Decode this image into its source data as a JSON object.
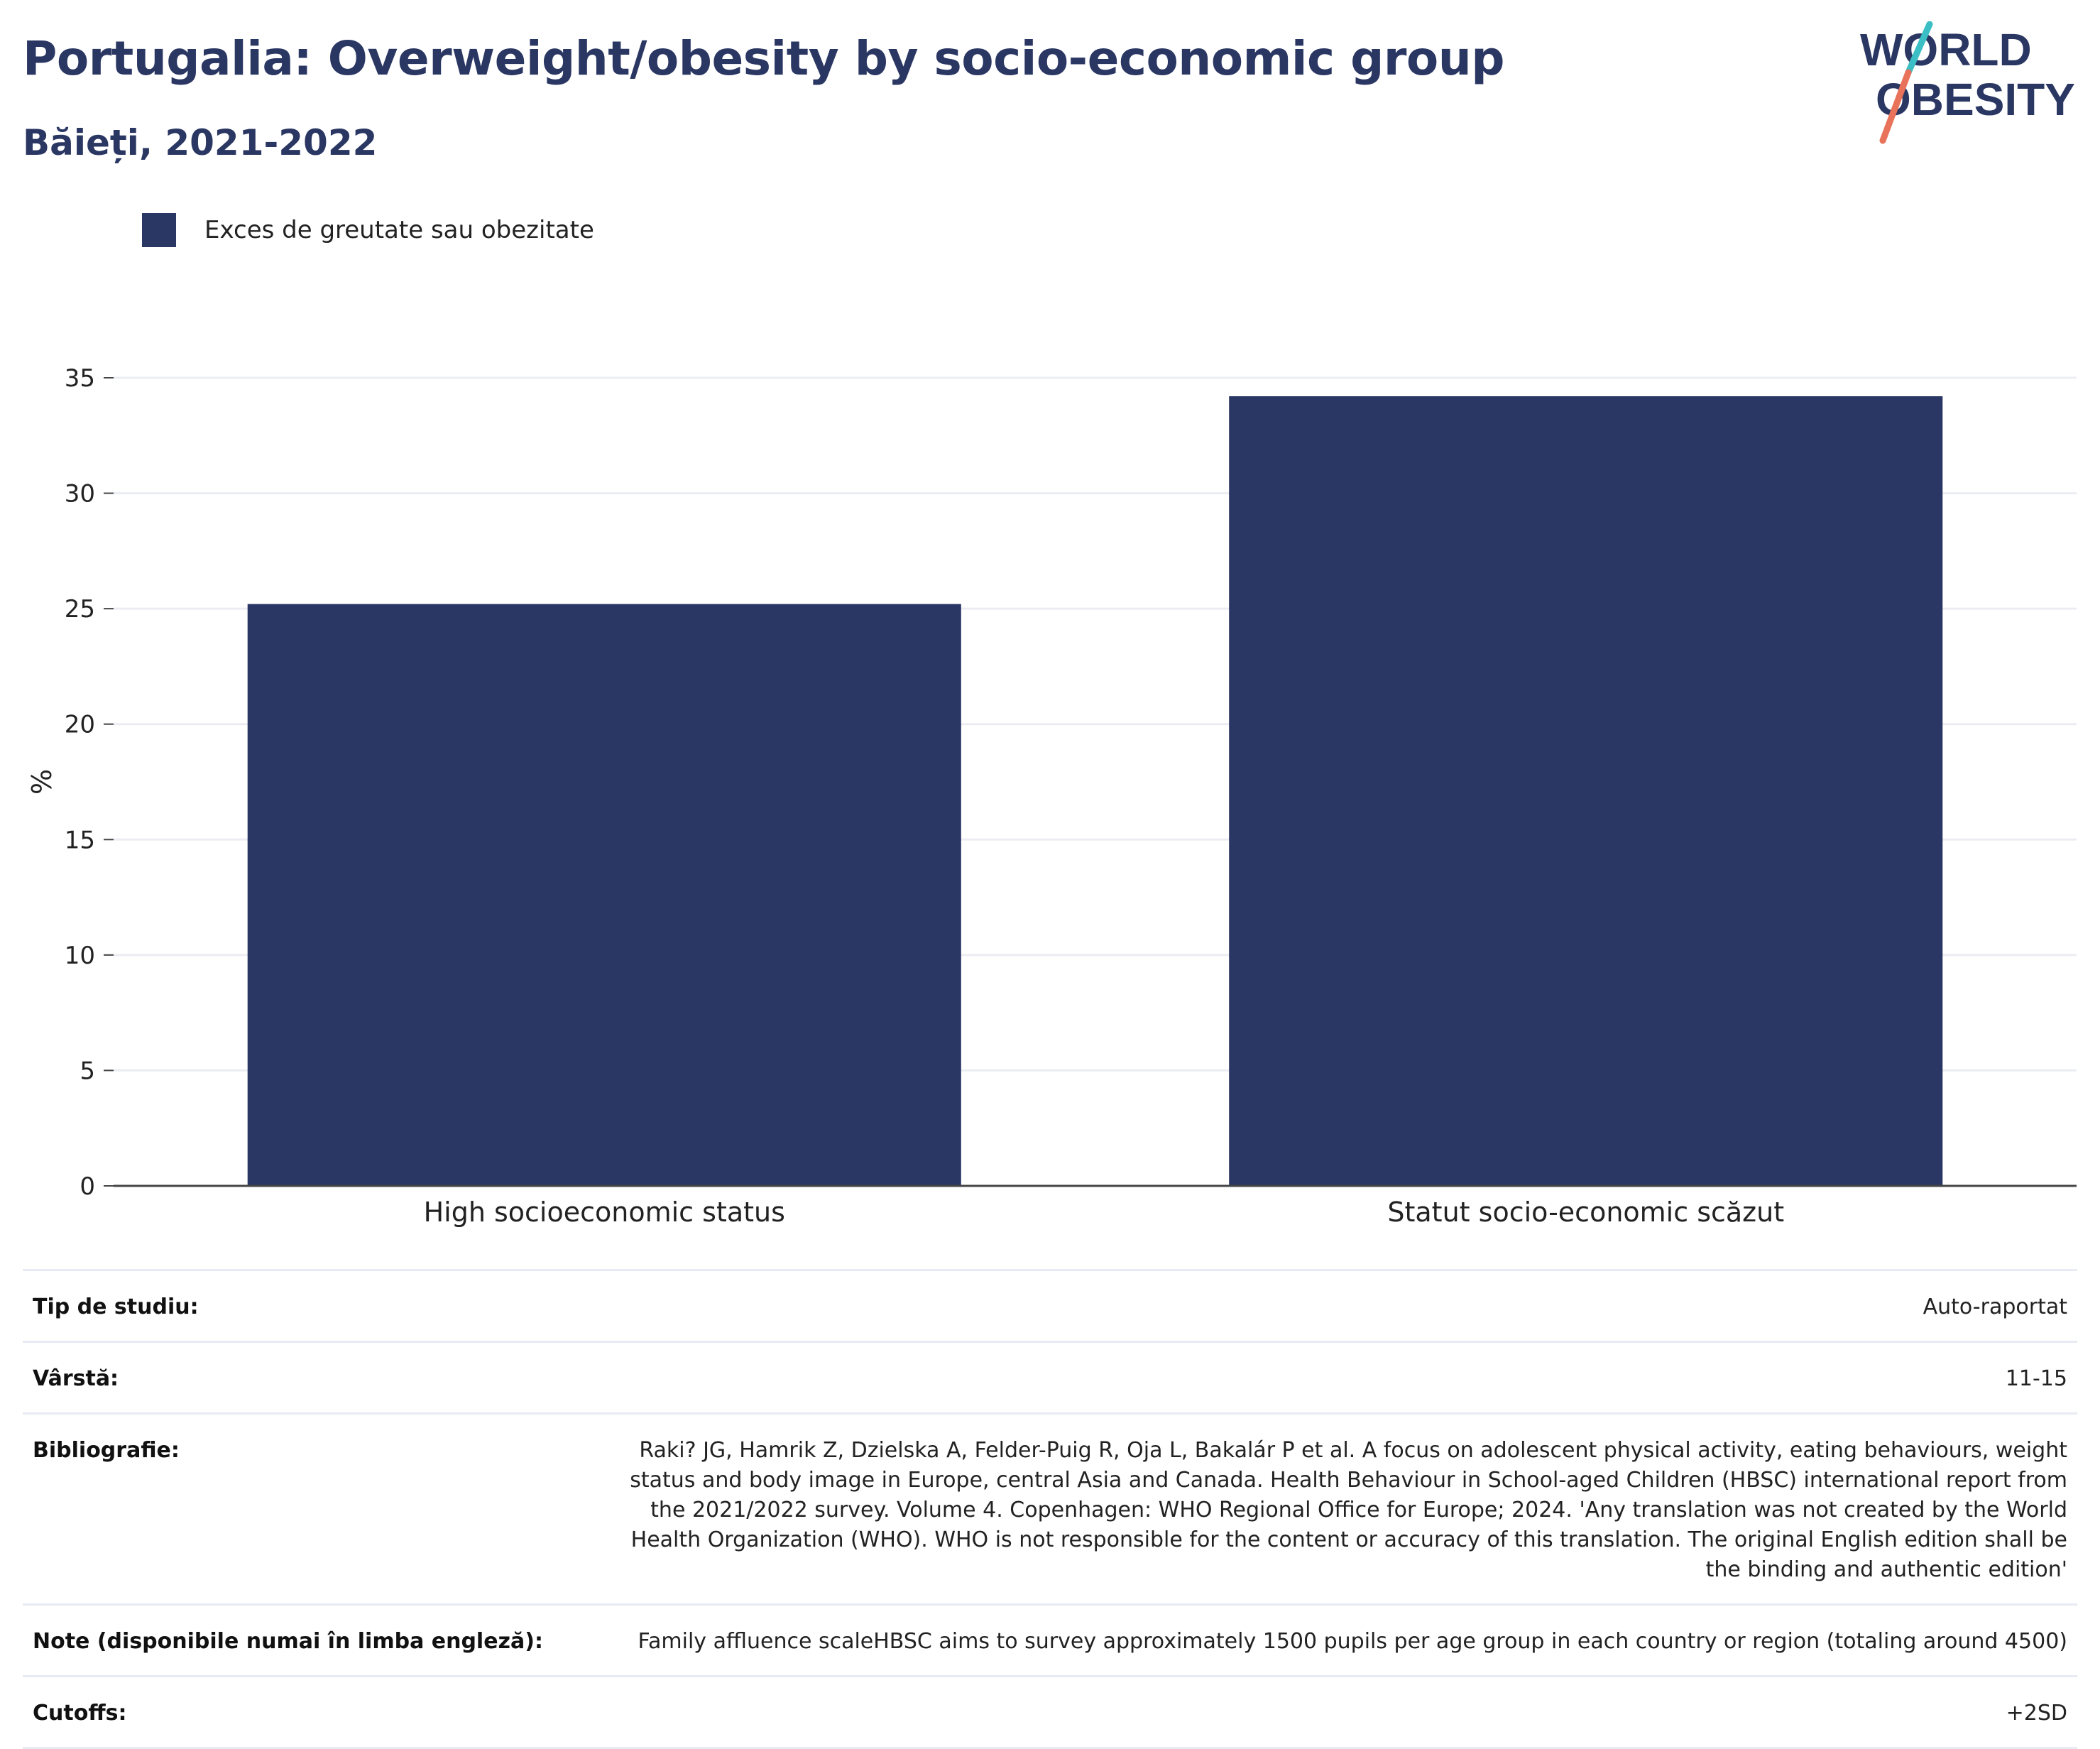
{
  "header": {
    "title": "Portugalia: Overweight/obesity by socio-economic group",
    "subtitle": "Băieți, 2021-2022"
  },
  "logo": {
    "line1": "WORLD",
    "line2": "OBESITY"
  },
  "colors": {
    "bar": "#2a3663",
    "title": "#2b3763",
    "grid": "#ebedf2",
    "logo_text": "#2b3763",
    "logo_slash_top": "#3bbfc4",
    "logo_slash_bottom": "#e8735a"
  },
  "legend": {
    "label": "Exces de greutate sau obezitate"
  },
  "chart_data": {
    "type": "bar",
    "categories": [
      "High socioeconomic status",
      "Statut socio-economic scăzut"
    ],
    "series": [
      {
        "name": "Exces de greutate sau obezitate",
        "values": [
          25.2,
          34.2
        ]
      }
    ],
    "ylabel": "%",
    "xlabel": "",
    "ylim": [
      0,
      35
    ],
    "yticks": [
      0,
      5,
      10,
      15,
      20,
      25,
      30,
      35
    ],
    "grid": true,
    "legend_position": "top-left"
  },
  "info": {
    "study_type": {
      "label": "Tip de studiu:",
      "value": "Auto-raportat"
    },
    "age": {
      "label": "Vârstă:",
      "value": "11-15"
    },
    "bibliography": {
      "label": "Bibliografie:",
      "value": "Raki? JG, Hamrik Z, Dzielska A, Felder-Puig R, Oja L, Bakalár P et al. A focus on adolescent physical activity, eating behaviours, weight status and body image in Europe, central Asia and Canada. Health Behaviour in School-aged Children (HBSC) international report from the 2021/2022 survey. Volume 4. Copenhagen: WHO Regional Office for Europe; 2024. 'Any translation was not created by the World Health Organization (WHO). WHO is not responsible for the content or accuracy of this translation. The original English edition shall be the binding and authentic edition'"
    },
    "notes": {
      "label": "Note (disponibile numai în limba engleză):",
      "value": "Family affluence scaleHBSC aims to survey approximately 1500 pupils per age group in each country or region (totaling around 4500)"
    },
    "cutoffs": {
      "label": "Cutoffs:",
      "value": "+2SD"
    }
  }
}
